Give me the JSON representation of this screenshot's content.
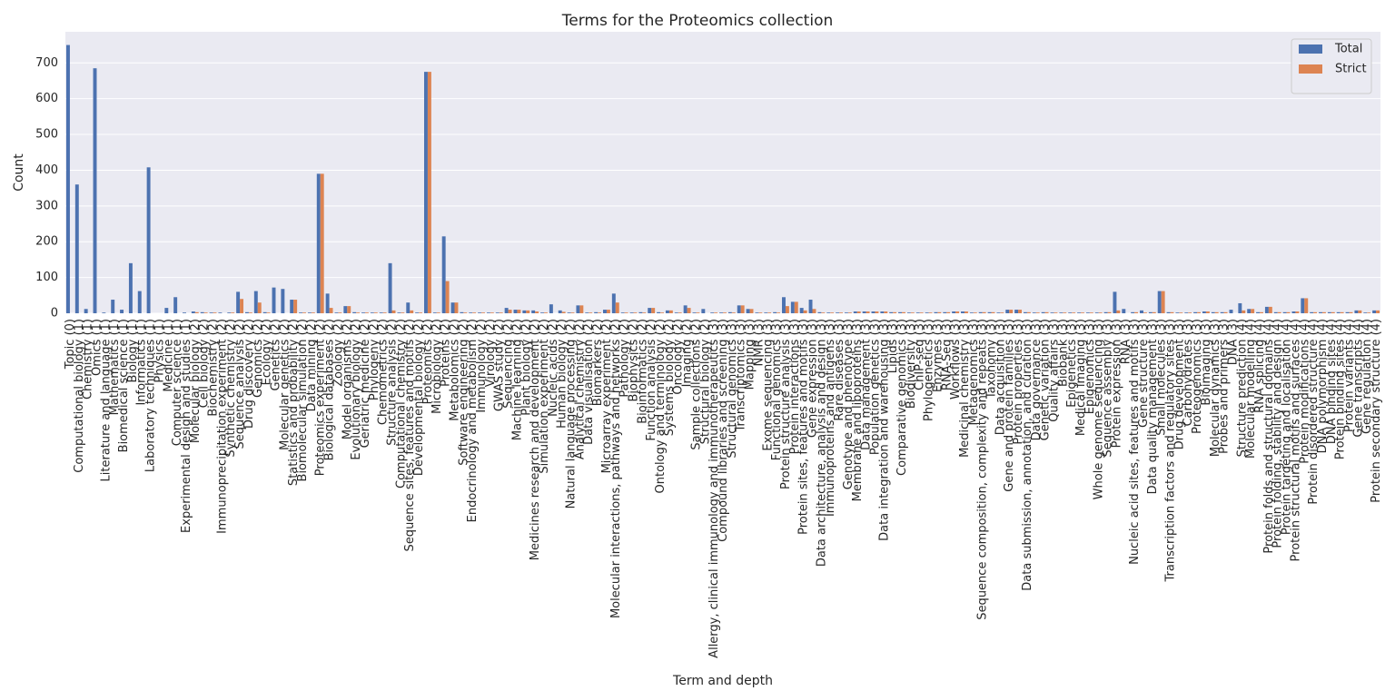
{
  "chart_data": {
    "type": "bar",
    "title": "Terms for the Proteomics collection",
    "xlabel": "Term and depth",
    "ylabel": "Count",
    "categories": [
      "Topic (0)",
      "Computational biology (1)",
      "Chemistry (1)",
      "Omics (1)",
      "Literature and language (1)",
      "Mathematics (1)",
      "Biomedical science (1)",
      "Biology (1)",
      "Informatics (1)",
      "Laboratory techniques (1)",
      "Physics (1)",
      "Medicine (1)",
      "Computer science (1)",
      "Experimental design and studies (1)",
      "Molecular biology (2)",
      "Cell biology (2)",
      "Biochemistry (2)",
      "Immunoprecipitation experiment (2)",
      "Synthetic chemistry (2)",
      "Sequence analysis (2)",
      "Drug discovery (2)",
      "Genomics (2)",
      "Ecology (2)",
      "Genetics (2)",
      "Molecular genetics (2)",
      "Statistics and probability (2)",
      "Biomolecular simulation (2)",
      "Data mining (2)",
      "Proteomics experiment (2)",
      "Biological databases (2)",
      "Zoology (2)",
      "Model organisms (2)",
      "Evolutionary biology (2)",
      "Geriatric medicine (2)",
      "Phylogeny (2)",
      "Chemometrics (2)",
      "Structure analysis (2)",
      "Computational chemistry (2)",
      "Sequence sites, features and motifs (2)",
      "Developmental biology (2)",
      "Proteomics (2)",
      "Microbiology (2)",
      "Proteins (2)",
      "Metabolomics (2)",
      "Software engineering (2)",
      "Endocrinology and metabolism (2)",
      "Immunology (2)",
      "Virology (2)",
      "GWAS study (2)",
      "Sequencing (2)",
      "Machine learning (2)",
      "Plant biology (2)",
      "Medicines research and development (2)",
      "Simulation experiment (2)",
      "Nucleic acids (2)",
      "Human biology (2)",
      "Natural language processing (2)",
      "Analytical chemistry (2)",
      "Data visualisation (2)",
      "Biomarkers (2)",
      "Microarray experiment (2)",
      "Molecular interactions, pathways and networks (2)",
      "Pathology (2)",
      "Biophysics (2)",
      "Bioinformatics (2)",
      "Function analysis (2)",
      "Ontology and terminology (2)",
      "Systems biology (2)",
      "Oncology (2)",
      "Imaging (2)",
      "Sample collections (2)",
      "Structural biology (2)",
      "Allergy, clinical immunology and immunotherapeutics (3)",
      "Compound libraries and screening (3)",
      "Structural genomics (3)",
      "Transcriptomics (3)",
      "Mapping (3)",
      "NMR (3)",
      "Exome sequencing (3)",
      "Functional genomics (3)",
      "Protein structure analysis (3)",
      "Protein interactions (3)",
      "Protein sites, features and motifs (3)",
      "Gene expression (3)",
      "Data architecture, analysis and design (3)",
      "Immunoproteins and antigens (3)",
      "Rare diseases (3)",
      "Genotype and phenotype (3)",
      "Membrane and lipoproteins (3)",
      "Data management (3)",
      "Population genetics (3)",
      "Data integration and warehousing (3)",
      "Lipids (3)",
      "Comparative genomics (3)",
      "Biodiversity (3)",
      "ChIP-seq (3)",
      "Phylogenetics (3)",
      "Enzymes (3)",
      "RNA-Seq (3)",
      "Workflows (3)",
      "Medicinal chemistry (3)",
      "Metagenomics (3)",
      "Sequence composition, complexity and repeats (3)",
      "Taxonomy (3)",
      "Data acquisition (3)",
      "Gene and protein families (3)",
      "Protein properties (3)",
      "Data submission, annotation, and curation (3)",
      "Data governance (3)",
      "Genetic variation (3)",
      "Quality affairs (3)",
      "Biobank (3)",
      "Epigenetics (3)",
      "Medical imaging (3)",
      "Epigenomics (3)",
      "Whole genome sequencing (3)",
      "Sequence assembly (3)",
      "Protein expression (3)",
      "RNA (3)",
      "Nucleic acid sites, features and motifs (3)",
      "Gene structure (3)",
      "Data quality management (3)",
      "Small molecules (3)",
      "Transcription factors and regulatory sites (3)",
      "Drug development (3)",
      "Carbohydrates (3)",
      "Proteogenomics (3)",
      "Bioimaging (3)",
      "Molecular dynamics (3)",
      "Probes and primers (3)",
      "DNA (3)",
      "Structure prediction (4)",
      "Molecular modelling (4)",
      "RNA splicing (4)",
      "Protein folds and structural domains (4)",
      "Protein folding, stability and design (4)",
      "Protein targeting and localisation (4)",
      "Protein structural motifs and surfaces (4)",
      "Protein modifications (4)",
      "Protein disordered structure (4)",
      "DNA polymorphism (4)",
      "DNA binding sites (4)",
      "Protein binding sites (4)",
      "Protein variants (4)",
      "Gene transcripts (4)",
      "Gene regulation (4)",
      "Protein secondary structure (4)"
    ],
    "series": [
      {
        "name": "Total",
        "color": "#4c72b0",
        "values": [
          750,
          360,
          12,
          685,
          2,
          38,
          10,
          140,
          62,
          408,
          0,
          15,
          45,
          2,
          5,
          3,
          2,
          2,
          2,
          60,
          3,
          62,
          3,
          72,
          68,
          38,
          2,
          2,
          390,
          55,
          2,
          20,
          3,
          2,
          2,
          2,
          140,
          2,
          30,
          2,
          675,
          2,
          215,
          30,
          3,
          2,
          2,
          2,
          2,
          15,
          10,
          8,
          8,
          2,
          25,
          8,
          2,
          22,
          2,
          3,
          10,
          55,
          2,
          2,
          3,
          15,
          3,
          8,
          2,
          22,
          2,
          12,
          2,
          2,
          3,
          22,
          12,
          2,
          2,
          3,
          45,
          32,
          15,
          38,
          3,
          2,
          2,
          2,
          5,
          5,
          5,
          5,
          3,
          3,
          2,
          2,
          2,
          3,
          3,
          5,
          5,
          2,
          3,
          3,
          2,
          10,
          10,
          3,
          2,
          3,
          2,
          2,
          2,
          2,
          2,
          2,
          3,
          60,
          12,
          3,
          8,
          3,
          62,
          3,
          2,
          2,
          3,
          5,
          3,
          3,
          10,
          28,
          12,
          3,
          18,
          3,
          3,
          5,
          42,
          3,
          3,
          3,
          3,
          3,
          8,
          2,
          8
        ]
      },
      {
        "name": "Strict",
        "color": "#dd8452",
        "values": [
          0,
          0,
          0,
          0,
          0,
          0,
          0,
          0,
          0,
          0,
          0,
          0,
          0,
          0,
          3,
          2,
          2,
          0,
          2,
          40,
          2,
          30,
          2,
          0,
          0,
          38,
          2,
          2,
          390,
          15,
          2,
          20,
          2,
          2,
          2,
          2,
          8,
          2,
          8,
          2,
          675,
          2,
          90,
          30,
          2,
          2,
          2,
          2,
          2,
          10,
          10,
          8,
          5,
          2,
          0,
          4,
          2,
          22,
          2,
          2,
          10,
          30,
          2,
          2,
          2,
          15,
          2,
          8,
          2,
          15,
          2,
          0,
          2,
          2,
          2,
          22,
          12,
          2,
          2,
          2,
          20,
          32,
          8,
          12,
          2,
          2,
          2,
          2,
          5,
          5,
          5,
          5,
          3,
          3,
          2,
          2,
          2,
          3,
          3,
          5,
          5,
          2,
          3,
          3,
          2,
          10,
          10,
          3,
          2,
          3,
          2,
          2,
          2,
          2,
          2,
          2,
          3,
          8,
          0,
          3,
          2,
          3,
          62,
          3,
          2,
          2,
          3,
          5,
          3,
          3,
          0,
          8,
          12,
          3,
          18,
          3,
          3,
          5,
          42,
          3,
          3,
          3,
          3,
          3,
          8,
          2,
          8
        ]
      }
    ],
    "ylim": [
      0,
      787
    ],
    "yticks": [
      0,
      100,
      200,
      300,
      400,
      500,
      600,
      700
    ],
    "grid": true,
    "legend": "upper right"
  }
}
